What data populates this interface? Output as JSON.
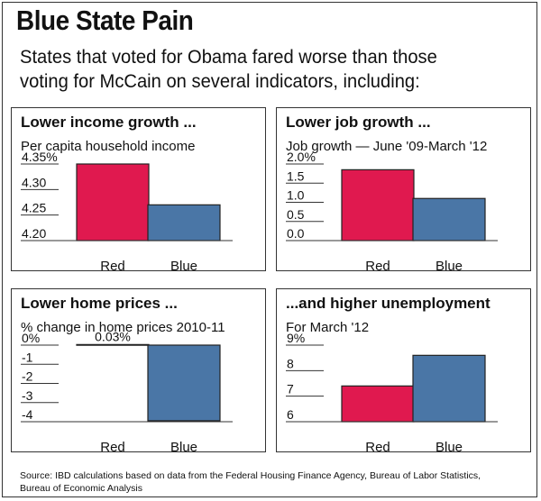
{
  "header": {
    "title": "Blue State Pain",
    "subtitle_line1": "States that voted for Obama fared worse than those",
    "subtitle_line2": "voting for McCain on several indicators, including:"
  },
  "colors": {
    "red": "#e0194f",
    "blue": "#4a76a6",
    "axis": "#333333"
  },
  "chart_data": [
    {
      "type": "bar",
      "title": "Lower income growth ...",
      "subtitle": "Per capita household income",
      "categories": [
        "Red",
        "Blue"
      ],
      "values": [
        4.35,
        4.27
      ],
      "ylim": [
        4.2,
        4.35
      ],
      "ticks": [
        {
          "v": 4.35,
          "label": "4.35%"
        },
        {
          "v": 4.3,
          "label": "4.30"
        },
        {
          "v": 4.25,
          "label": "4.25"
        },
        {
          "v": 4.2,
          "label": "4.20"
        }
      ],
      "data_labels": [
        "",
        ""
      ]
    },
    {
      "type": "bar",
      "title": "Lower job growth ...",
      "subtitle": "Job growth — June '09-March '12",
      "categories": [
        "Red",
        "Blue"
      ],
      "values": [
        1.85,
        1.1
      ],
      "ylim": [
        0,
        2.0
      ],
      "ticks": [
        {
          "v": 2.0,
          "label": "2.0%"
        },
        {
          "v": 1.5,
          "label": "1.5"
        },
        {
          "v": 1.0,
          "label": "1.0"
        },
        {
          "v": 0.5,
          "label": "0.5"
        },
        {
          "v": 0.0,
          "label": "0.0"
        }
      ],
      "data_labels": [
        "",
        ""
      ]
    },
    {
      "type": "bar",
      "title": "Lower home prices ...",
      "subtitle": "% change in home prices 2010-11",
      "categories": [
        "Red",
        "Blue"
      ],
      "values": [
        0.03,
        -3.95
      ],
      "ylim": [
        -4,
        0
      ],
      "ticks": [
        {
          "v": 0,
          "label": "0%"
        },
        {
          "v": -1,
          "label": "-1"
        },
        {
          "v": -2,
          "label": "-2"
        },
        {
          "v": -3,
          "label": "-3"
        },
        {
          "v": -4,
          "label": "-4"
        }
      ],
      "data_labels": [
        "0.03%",
        ""
      ]
    },
    {
      "type": "bar",
      "title": "...and higher unemployment",
      "subtitle": "For March '12",
      "categories": [
        "Red",
        "Blue"
      ],
      "values": [
        7.4,
        8.6
      ],
      "ylim": [
        6,
        9
      ],
      "ticks": [
        {
          "v": 9,
          "label": "9%"
        },
        {
          "v": 8,
          "label": "8"
        },
        {
          "v": 7,
          "label": "7"
        },
        {
          "v": 6,
          "label": "6"
        }
      ],
      "data_labels": [
        "",
        ""
      ]
    }
  ],
  "source": {
    "line1": "Source: IBD calculations based on data from the Federal Housing Finance Agency, Bureau of Labor Statistics,",
    "line2": "Bureau of Economic Analysis"
  }
}
